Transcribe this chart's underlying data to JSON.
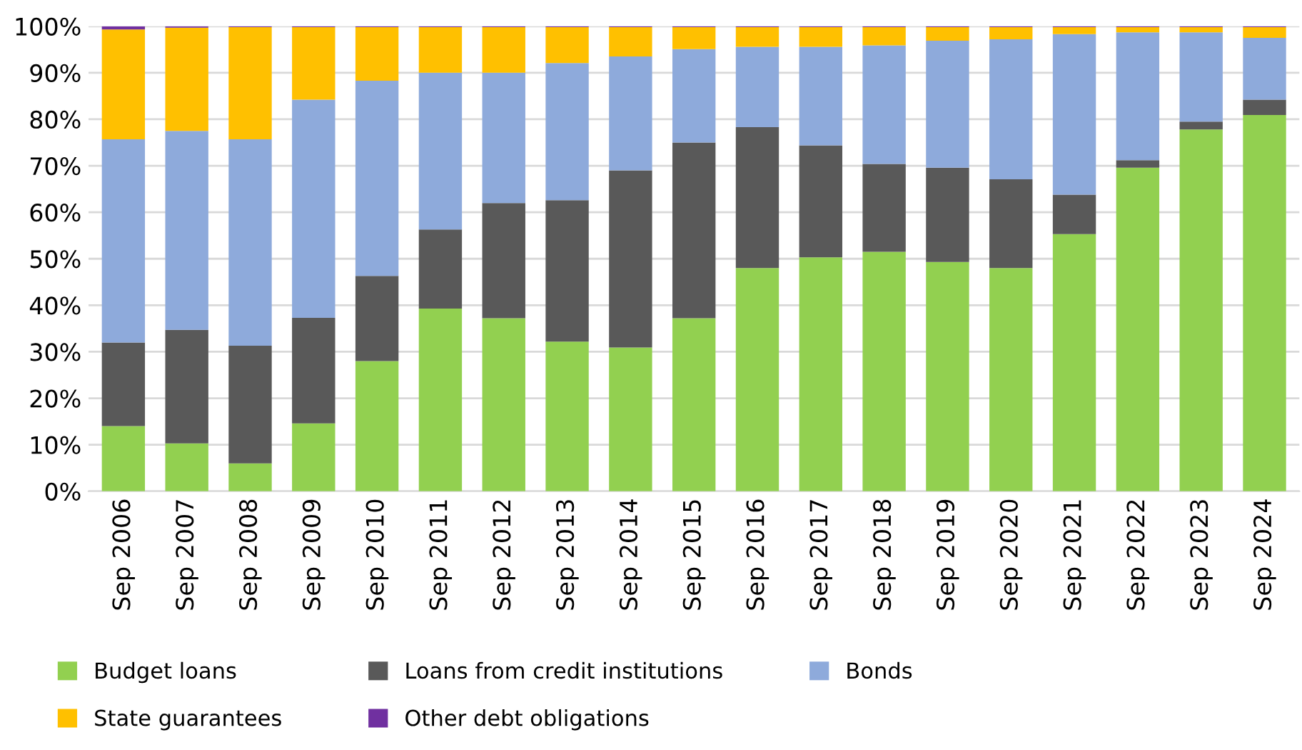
{
  "chart_data": {
    "type": "bar",
    "stacked": true,
    "categories": [
      "Sep 2006",
      "Sep 2007",
      "Sep 2008",
      "Sep 2009",
      "Sep 2010",
      "Sep 2011",
      "Sep 2012",
      "Sep 2013",
      "Sep 2014",
      "Sep 2015",
      "Sep 2016",
      "Sep 2017",
      "Sep 2018",
      "Sep 2019",
      "Sep 2020",
      "Sep 2021",
      "Sep 2022",
      "Sep 2023",
      "Sep 2024"
    ],
    "series": [
      {
        "name": "Budget loans",
        "color": "#92d050",
        "values": [
          14,
          10.3,
          6,
          14.6,
          28,
          39.3,
          37.2,
          32.2,
          30.9,
          37.2,
          48,
          50.3,
          51.5,
          49.3,
          48,
          55.3,
          69.6,
          77.8,
          80.9
        ]
      },
      {
        "name": "Loans from credit institutions",
        "color": "#595959",
        "values": [
          18,
          24.4,
          25.3,
          22.7,
          18.3,
          17,
          24.8,
          30.4,
          38.1,
          37.8,
          30.3,
          24.1,
          18.9,
          20.3,
          19.1,
          8.5,
          1.6,
          1.7,
          3.3
        ]
      },
      {
        "name": "Bonds",
        "color": "#8eaadb",
        "values": [
          43.7,
          42.8,
          44.4,
          46.9,
          42,
          33.7,
          28,
          29.5,
          24.5,
          20.1,
          17.3,
          21.2,
          25.5,
          27.3,
          30.1,
          34.5,
          27.5,
          19.2,
          13.3
        ]
      },
      {
        "name": "State guarantees",
        "color": "#ffc000",
        "values": [
          23.6,
          22.2,
          24.1,
          15.6,
          11.5,
          9.8,
          9.8,
          7.7,
          6.3,
          4.7,
          4.2,
          4.2,
          3.9,
          2.9,
          2.6,
          1.5,
          1.1,
          1.1,
          2.3
        ]
      },
      {
        "name": "Other debt obligations",
        "color": "#7030a0",
        "values": [
          0.7,
          0.3,
          0.2,
          0.2,
          0.2,
          0.2,
          0.2,
          0.2,
          0.2,
          0.2,
          0.2,
          0.2,
          0.2,
          0.2,
          0.2,
          0.2,
          0.2,
          0.2,
          0.2
        ]
      }
    ],
    "ylim": [
      0,
      100
    ],
    "yticks": [
      {
        "value": 0,
        "label": "0%"
      },
      {
        "value": 10,
        "label": "10%"
      },
      {
        "value": 20,
        "label": "20%"
      },
      {
        "value": 30,
        "label": "30%"
      },
      {
        "value": 40,
        "label": "40%"
      },
      {
        "value": 50,
        "label": "50%"
      },
      {
        "value": 60,
        "label": "60%"
      },
      {
        "value": 70,
        "label": "70%"
      },
      {
        "value": 80,
        "label": "80%"
      },
      {
        "value": 90,
        "label": "90%"
      },
      {
        "value": 100,
        "label": "100%"
      }
    ],
    "grid": "y",
    "legend": "bottom"
  }
}
